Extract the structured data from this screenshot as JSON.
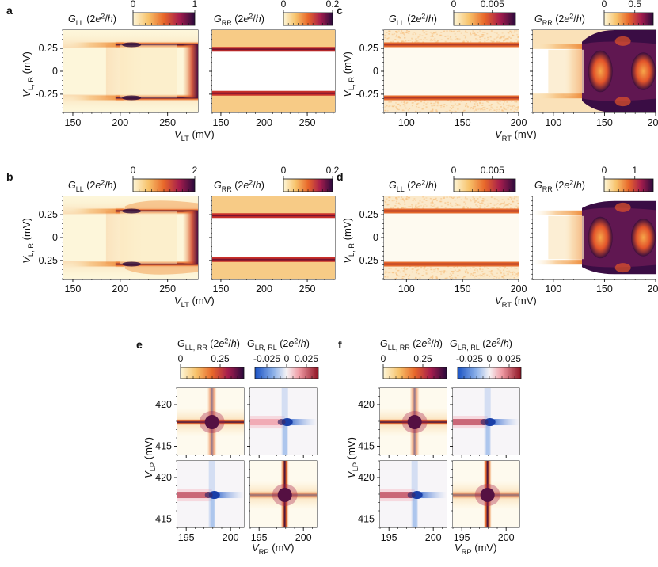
{
  "panel_letters": [
    "a",
    "b",
    "c",
    "d",
    "e",
    "f"
  ],
  "units": {
    "conductance": "(2e²/h)"
  },
  "colors": {
    "inferno_low": "#fcf4d2",
    "inferno_mid": "#e8672a",
    "inferno_high": "#2a0a3c",
    "diverge_neg": "#1a52c4",
    "diverge_zero": "#f6f3f5",
    "diverge_pos": "#8e1222"
  },
  "chart_data": [
    {
      "id": "a",
      "type": "heatmap",
      "subplots": [
        {
          "quantity": "G_LL",
          "colorbar_ticks": [
            "0",
            "1"
          ],
          "colorbar_range": [
            0,
            1
          ]
        },
        {
          "quantity": "G_RR",
          "colorbar_ticks": [
            "0",
            "0.2"
          ],
          "colorbar_range": [
            0,
            0.2
          ]
        }
      ],
      "xlabel": "V_LT (mV)",
      "ylabel": "V_L,R (mV)",
      "xlim": [
        140,
        282
      ],
      "ylim": [
        -0.45,
        0.45
      ],
      "xticks": [
        "150",
        "200",
        "250"
      ],
      "yticks": [
        "0.25",
        "0",
        "-0.25"
      ]
    },
    {
      "id": "b",
      "type": "heatmap",
      "subplots": [
        {
          "quantity": "G_LL",
          "colorbar_ticks": [
            "0",
            "2"
          ],
          "colorbar_range": [
            0,
            2
          ]
        },
        {
          "quantity": "G_RR",
          "colorbar_ticks": [
            "0",
            "0.2"
          ],
          "colorbar_range": [
            0,
            0.2
          ]
        }
      ],
      "xlabel": "V_LT (mV)",
      "ylabel": "V_L,R (mV)",
      "xlim": [
        140,
        282
      ],
      "ylim": [
        -0.45,
        0.45
      ],
      "xticks": [
        "150",
        "200",
        "250"
      ],
      "yticks": [
        "0.25",
        "0",
        "-0.25"
      ]
    },
    {
      "id": "c",
      "type": "heatmap",
      "subplots": [
        {
          "quantity": "G_LL",
          "colorbar_ticks": [
            "0",
            "0.005"
          ],
          "colorbar_range": [
            0,
            0.008
          ]
        },
        {
          "quantity": "G_RR",
          "colorbar_ticks": [
            "0",
            "0.5"
          ],
          "colorbar_range": [
            0,
            0.8
          ]
        }
      ],
      "xlabel": "V_RT (mV)",
      "ylabel": "V_L,R (mV)",
      "xlim": [
        80,
        200
      ],
      "ylim": [
        -0.45,
        0.45
      ],
      "xticks": [
        "100",
        "150",
        "200"
      ],
      "yticks": [
        "0.25",
        "0",
        "-0.25"
      ]
    },
    {
      "id": "d",
      "type": "heatmap",
      "subplots": [
        {
          "quantity": "G_LL",
          "colorbar_ticks": [
            "0",
            "0.005"
          ],
          "colorbar_range": [
            0,
            0.008
          ]
        },
        {
          "quantity": "G_RR",
          "colorbar_ticks": [
            "0",
            "1"
          ],
          "colorbar_range": [
            0,
            1.6
          ]
        }
      ],
      "xlabel": "V_RT (mV)",
      "ylabel": "V_L,R (mV)",
      "xlim": [
        80,
        200
      ],
      "ylim": [
        -0.45,
        0.45
      ],
      "xticks": [
        "100",
        "150",
        "200"
      ],
      "yticks": [
        "0.25",
        "0",
        "-0.25"
      ]
    },
    {
      "id": "e",
      "type": "heatmap",
      "colorbars": [
        {
          "quantity": "G_LL,RR",
          "ticks": [
            "0",
            "0.25"
          ],
          "range": [
            0,
            0.4
          ]
        },
        {
          "quantity": "G_LR,RL",
          "ticks": [
            "-0.025",
            "0",
            "0.025"
          ],
          "range": [
            -0.04,
            0.04
          ]
        }
      ],
      "subplots": [
        {
          "label": "G_LL"
        },
        {
          "label": "G_LR",
          "annotation": "arrow"
        },
        {
          "label": "G_RL"
        },
        {
          "label": "G_RR"
        }
      ],
      "xlabel": "V_RP (mV)",
      "ylabel": "V_LP (mV)",
      "xlim": [
        194,
        201.5
      ],
      "ylim": [
        414,
        422
      ],
      "xticks": [
        "195",
        "200"
      ],
      "yticks": [
        "420",
        "415"
      ]
    },
    {
      "id": "f",
      "type": "heatmap",
      "colorbars": [
        {
          "quantity": "G_LL,RR",
          "ticks": [
            "0",
            "0.25"
          ],
          "range": [
            0,
            0.4
          ]
        },
        {
          "quantity": "G_LR,RL",
          "ticks": [
            "-0.025",
            "0",
            "0.025"
          ],
          "range": [
            -0.04,
            0.04
          ]
        }
      ],
      "subplots": [
        {
          "label": "G_LL"
        },
        {
          "label": "G_LR",
          "annotation": "arrow"
        },
        {
          "label": "G_RL"
        },
        {
          "label": "G_RR"
        }
      ],
      "xlabel": "V_RP (mV)",
      "ylabel": "V_LP (mV)",
      "xlim": [
        194,
        201.5
      ],
      "ylim": [
        414,
        422
      ],
      "xticks": [
        "195",
        "200"
      ],
      "yticks": [
        "420",
        "415"
      ]
    }
  ]
}
